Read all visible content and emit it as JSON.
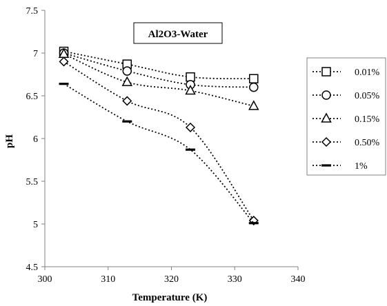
{
  "chart_data": {
    "type": "line",
    "title": "Al2O3-Water",
    "xlabel": "Temperature (K)",
    "ylabel": "pH",
    "xlim": [
      300,
      340
    ],
    "ylim": [
      4.5,
      7.5
    ],
    "x_ticks": [
      "300",
      "310",
      "320",
      "330",
      "340"
    ],
    "y_ticks": [
      "4.5",
      "5",
      "5.5",
      "6",
      "6.5",
      "7",
      "7.5"
    ],
    "x": [
      303,
      313,
      323,
      333
    ],
    "series": [
      {
        "name": "0.01%",
        "marker": "square",
        "values": [
          7.02,
          6.87,
          6.72,
          6.7
        ]
      },
      {
        "name": "0.05%",
        "marker": "circle",
        "values": [
          7.0,
          6.79,
          6.63,
          6.6
        ]
      },
      {
        "name": "0.15%",
        "marker": "triangle",
        "values": [
          6.99,
          6.66,
          6.56,
          6.38
        ]
      },
      {
        "name": "0.50%",
        "marker": "diamond",
        "values": [
          6.9,
          6.44,
          6.13,
          5.04
        ]
      },
      {
        "name": "1%",
        "marker": "dash",
        "values": [
          6.64,
          6.2,
          5.87,
          5.01
        ]
      }
    ],
    "grid": false,
    "legend_position": "right"
  }
}
